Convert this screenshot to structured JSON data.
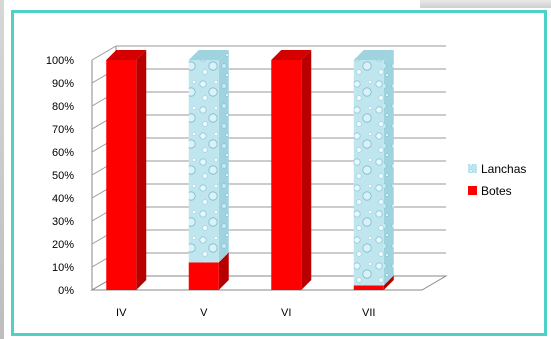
{
  "chart_data": {
    "type": "bar",
    "stacked": true,
    "percent_stacked": true,
    "three_d": true,
    "categories": [
      "IV",
      "V",
      "VI",
      "VII"
    ],
    "series": [
      {
        "name": "Botes",
        "values": [
          100,
          12,
          100,
          2
        ],
        "color": "#ff0000"
      },
      {
        "name": "Lanchas",
        "values": [
          0,
          88,
          0,
          98
        ],
        "color": "#bfe6ee"
      }
    ],
    "y_ticks": [
      "0%",
      "10%",
      "20%",
      "30%",
      "40%",
      "50%",
      "60%",
      "70%",
      "80%",
      "90%",
      "100%"
    ],
    "ylim": [
      0,
      100
    ],
    "grid": true,
    "legend_placement": "right",
    "legend": [
      "Lanchas",
      "Botes"
    ]
  }
}
